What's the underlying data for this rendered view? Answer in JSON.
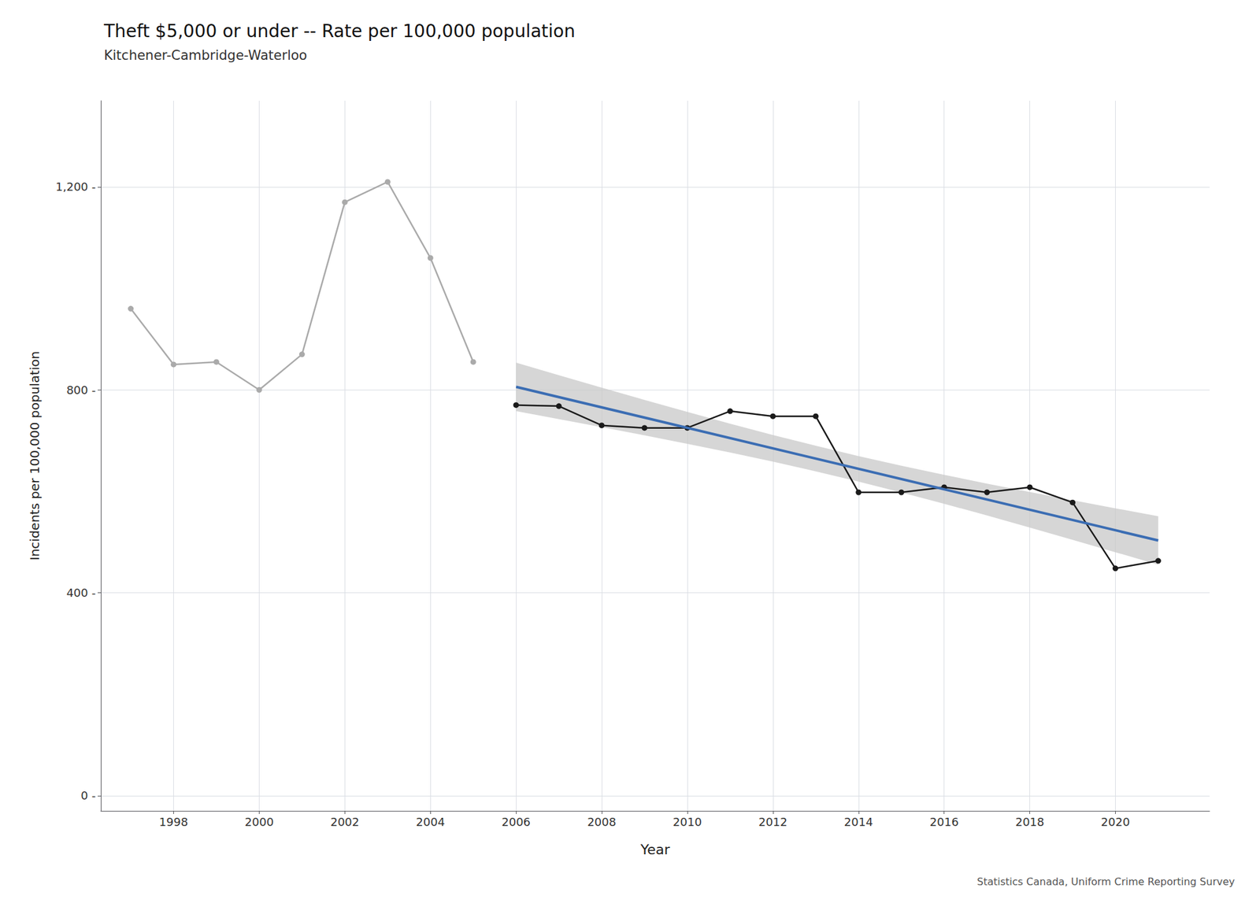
{
  "chart_data": {
    "type": "line",
    "title": "Theft $5,000 or under -- Rate per 100,000 population",
    "subtitle": "Kitchener-Cambridge-Waterloo",
    "xlabel": "Year",
    "ylabel": "Incidents per 100,000 population",
    "annotations": [
      "Statistics Canada, Uniform Crime Reporting Survey"
    ],
    "grid": true,
    "xlim": [
      1996.3,
      2022.2
    ],
    "xticks": [
      1998,
      2000,
      2002,
      2004,
      2006,
      2008,
      2010,
      2012,
      2014,
      2016,
      2018,
      2020
    ],
    "ylim": [
      -30,
      1370
    ],
    "yticks": [
      {
        "value": 0,
        "label": "0 -"
      },
      {
        "value": 400,
        "label": "400 -"
      },
      {
        "value": 800,
        "label": "800 -"
      },
      {
        "value": 1200,
        "label": "1,200 -"
      }
    ],
    "series": [
      {
        "type": "line",
        "color": "#AAAAAA",
        "marker": "circle",
        "x": [
          1997,
          1998,
          1999,
          2000,
          2001,
          2002,
          2003,
          2004,
          2005
        ],
        "values": [
          960,
          850,
          855,
          800,
          870,
          1170,
          1210,
          1060,
          855
        ]
      },
      {
        "type": "line",
        "color": "#1A1A1A",
        "marker": "circle",
        "x": [
          2006,
          2007,
          2008,
          2009,
          2010,
          2011,
          2012,
          2013,
          2014,
          2015,
          2016,
          2017,
          2018,
          2019,
          2020,
          2021
        ],
        "values": [
          770,
          768,
          730,
          725,
          725,
          758,
          748,
          748,
          598,
          598,
          608,
          598,
          608,
          578,
          448,
          463
        ]
      },
      {
        "type": "band",
        "color": "#C8C8C8",
        "x": [
          2006,
          2007,
          2008,
          2009,
          2010,
          2011,
          2012,
          2013,
          2014,
          2015,
          2016,
          2017,
          2018,
          2019,
          2020,
          2021
        ],
        "lower": [
          758.03,
          742.38,
          726.49,
          710.29,
          693.65,
          676.42,
          658.38,
          639.34,
          619.15,
          597.81,
          575.47,
          552.32,
          528.58,
          504.4,
          479.91,
          455.19
        ],
        "upper": [
          853.69,
          828.96,
          804.47,
          780.29,
          756.55,
          733.4,
          711.06,
          689.72,
          669.53,
          650.49,
          632.45,
          615.22,
          598.58,
          582.38,
          566.49,
          550.85
        ]
      },
      {
        "type": "line",
        "color": "#3B6DB3",
        "x": [
          2006,
          2021
        ],
        "values": [
          805.86,
          503.01
        ]
      }
    ]
  }
}
